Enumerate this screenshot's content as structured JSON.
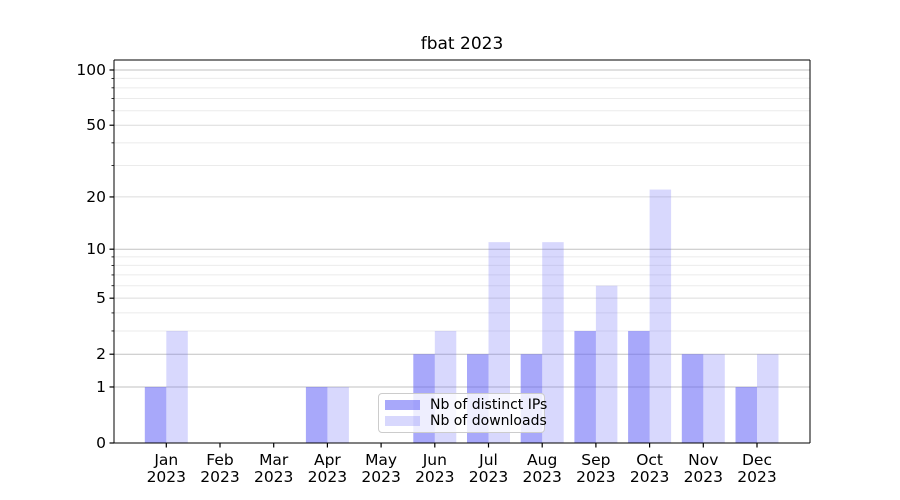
{
  "chart_data": {
    "type": "bar",
    "title": "fbat 2023",
    "categories": [
      "Jan 2023",
      "Feb 2023",
      "Mar 2023",
      "Apr 2023",
      "May 2023",
      "Jun 2023",
      "Jul 2023",
      "Aug 2023",
      "Sep 2023",
      "Oct 2023",
      "Nov 2023",
      "Dec 2023"
    ],
    "months": [
      "Jan",
      "Feb",
      "Mar",
      "Apr",
      "May",
      "Jun",
      "Jul",
      "Aug",
      "Sep",
      "Oct",
      "Nov",
      "Dec"
    ],
    "year_label": "2023",
    "series": [
      {
        "name": "Nb of distinct IPs",
        "color": "rgba(100,100,246,0.56)",
        "values": [
          1,
          0,
          0,
          1,
          0,
          2,
          2,
          2,
          3,
          3,
          2,
          1
        ]
      },
      {
        "name": "Nb of downloads",
        "color": "rgba(100,100,246,0.25)",
        "values": [
          3,
          0,
          0,
          1,
          0,
          3,
          11,
          11,
          6,
          22,
          2,
          2
        ]
      }
    ],
    "y_axis": {
      "scale": "log10(1+y)",
      "ticks": [
        0,
        1,
        2,
        5,
        10,
        20,
        50,
        100
      ],
      "minor_ticks": [
        3,
        4,
        6,
        7,
        8,
        9,
        30,
        40,
        60,
        70,
        80,
        90
      ],
      "emphasized_gridlines": [
        1,
        2,
        10,
        100
      ],
      "range": [
        0,
        113.5
      ]
    },
    "x_axis": {
      "label_lines": 2
    },
    "grid": true,
    "legend": {
      "position": "lower center"
    },
    "colors": {
      "bar_base": "#6464f6",
      "grid_major_dark": "#c2c2c2",
      "grid_major_light": "#dcdcdc",
      "grid_minor": "#ebebeb",
      "axis": "#000000"
    }
  }
}
